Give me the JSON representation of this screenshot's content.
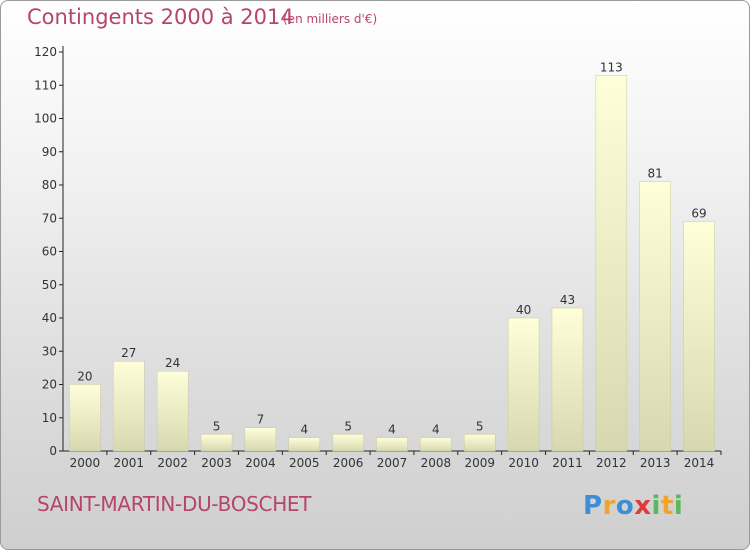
{
  "header": {
    "title": "Contingents 2000 à 2014",
    "subtitle": "(en milliers d'€)"
  },
  "footer": {
    "commune": "SAINT-MARTIN-DU-BOSCHET",
    "logo_text": "Proxiti"
  },
  "colors": {
    "title": "#b5456b",
    "bar_top": "#feffd9",
    "bar_bottom": "#d8d8b0",
    "axis": "#222222",
    "grid": "#c8c8c8"
  },
  "chart_data": {
    "type": "bar",
    "title": "Contingents 2000 à 2014",
    "subtitle": "(en milliers d'€)",
    "xlabel": "",
    "ylabel": "",
    "categories": [
      "2000",
      "2001",
      "2002",
      "2003",
      "2004",
      "2005",
      "2006",
      "2007",
      "2008",
      "2009",
      "2010",
      "2011",
      "2012",
      "2013",
      "2014"
    ],
    "values": [
      20,
      27,
      24,
      5,
      7,
      4,
      5,
      4,
      4,
      5,
      40,
      43,
      113,
      81,
      69
    ],
    "ylim": [
      0,
      120
    ],
    "yticks": [
      0,
      10,
      20,
      30,
      40,
      50,
      60,
      70,
      80,
      90,
      100,
      110,
      120
    ],
    "grid": false,
    "data_labels": true
  }
}
